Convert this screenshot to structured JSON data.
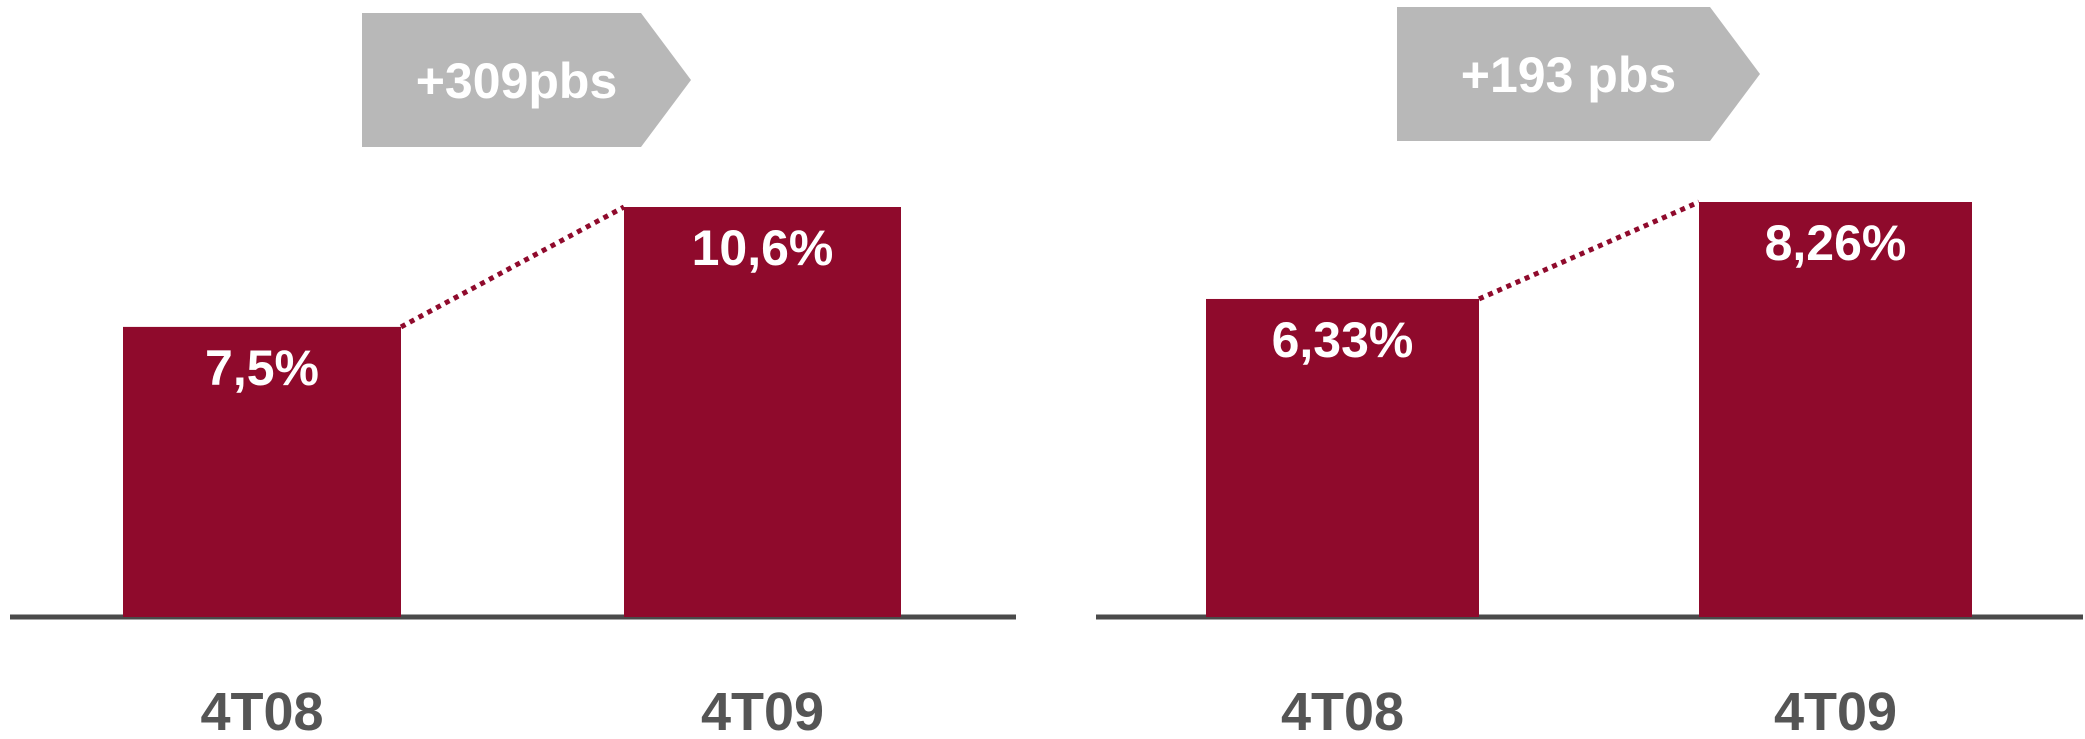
{
  "colors": {
    "bar": "#8f0a2c",
    "badge": "#b8b8b8",
    "axis": "#4a4a4a",
    "category_text": "#555555"
  },
  "chart_data": [
    {
      "type": "bar",
      "categories": [
        "4T08",
        "4T09"
      ],
      "values": [
        7.5,
        10.6
      ],
      "value_labels": [
        "7,5%",
        "10,6%"
      ],
      "change_label": "+309pbs",
      "ylim": [
        0,
        12
      ],
      "grid": false
    },
    {
      "type": "bar",
      "categories": [
        "4T08",
        "4T09"
      ],
      "values": [
        6.33,
        8.26
      ],
      "value_labels": [
        "6,33%",
        "8,26%"
      ],
      "change_label": "+193 pbs",
      "ylim": [
        0,
        10
      ],
      "grid": false
    }
  ]
}
